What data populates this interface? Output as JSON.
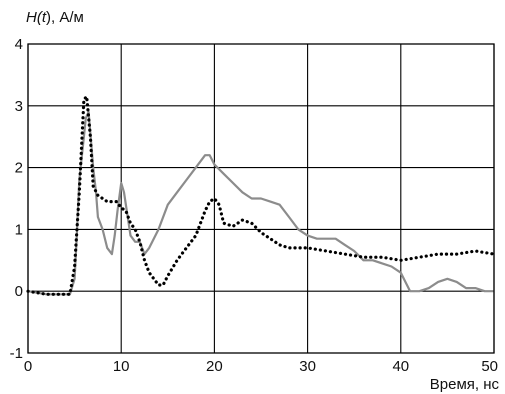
{
  "chart_data": {
    "type": "line",
    "title": "",
    "ylabel_parts": [
      {
        "text": "H(",
        "italic": true
      },
      {
        "text": "t",
        "italic": true
      },
      {
        "text": "), А/м",
        "italic": false
      }
    ],
    "ylabel": "H(t), А/м",
    "xlabel": "Время, нс",
    "xlim": [
      0,
      50
    ],
    "ylim": [
      -1,
      4
    ],
    "xticks": [
      0,
      10,
      20,
      30,
      40,
      50
    ],
    "yticks": [
      -1,
      0,
      1,
      2,
      3,
      4
    ],
    "xtick_labels": [
      "0",
      "10",
      "20",
      "30",
      "40",
      "50"
    ],
    "ytick_labels": [
      "-1",
      "0",
      "1",
      "2",
      "3",
      "4"
    ],
    "grid": true,
    "legend": "none",
    "series": [
      {
        "style": "solid",
        "color": "#8c8c8c",
        "x": [
          0,
          2,
          4.5,
          5,
          5.2,
          5.5,
          6,
          6.2,
          6.5,
          7,
          7.3,
          7.5,
          8,
          8.5,
          9,
          9.3,
          9.6,
          10,
          10.3,
          10.6,
          11,
          11.5,
          12,
          12.5,
          13,
          14,
          15,
          16,
          17,
          18,
          19,
          19.5,
          20,
          21,
          22,
          23,
          24,
          25,
          26,
          27,
          28,
          29,
          30,
          31,
          32,
          33,
          34,
          35,
          36,
          37,
          38,
          39,
          40,
          41,
          42,
          43,
          44,
          45,
          46,
          47,
          48,
          49,
          50
        ],
        "y": [
          0.0,
          -0.05,
          -0.05,
          0.2,
          0.8,
          1.8,
          2.5,
          2.8,
          2.9,
          2.0,
          1.6,
          1.2,
          1.0,
          0.7,
          0.6,
          0.9,
          1.3,
          1.75,
          1.6,
          1.3,
          0.9,
          0.8,
          0.8,
          0.6,
          0.7,
          1.0,
          1.4,
          1.6,
          1.8,
          2.0,
          2.2,
          2.2,
          2.05,
          1.9,
          1.75,
          1.6,
          1.5,
          1.5,
          1.45,
          1.4,
          1.2,
          1.0,
          0.9,
          0.85,
          0.85,
          0.85,
          0.75,
          0.65,
          0.5,
          0.5,
          0.45,
          0.4,
          0.3,
          0.0,
          0.0,
          0.05,
          0.15,
          0.2,
          0.15,
          0.05,
          0.05,
          0.0,
          0.0
        ]
      },
      {
        "style": "dotted",
        "color": "#000000",
        "x": [
          0,
          2,
          4.5,
          5,
          5.5,
          6,
          6.3,
          6.7,
          7,
          7.5,
          8,
          8.5,
          9,
          9.5,
          10,
          10.5,
          11,
          11.5,
          12,
          12.5,
          13,
          13.5,
          14,
          14.5,
          15,
          16,
          17,
          18,
          19,
          19.5,
          20,
          20.5,
          21,
          22,
          23,
          24,
          25,
          26,
          27,
          28,
          30,
          32,
          34,
          36,
          38,
          40,
          42,
          44,
          46,
          48,
          50
        ],
        "y": [
          0.0,
          -0.05,
          -0.05,
          0.4,
          1.6,
          3.1,
          3.15,
          2.5,
          1.7,
          1.55,
          1.5,
          1.45,
          1.45,
          1.45,
          1.35,
          1.3,
          1.1,
          1.0,
          0.8,
          0.5,
          0.3,
          0.2,
          0.1,
          0.1,
          0.25,
          0.5,
          0.7,
          0.9,
          1.3,
          1.45,
          1.5,
          1.4,
          1.1,
          1.05,
          1.15,
          1.1,
          0.95,
          0.85,
          0.75,
          0.7,
          0.7,
          0.65,
          0.6,
          0.55,
          0.55,
          0.5,
          0.55,
          0.6,
          0.6,
          0.65,
          0.6
        ]
      }
    ]
  }
}
